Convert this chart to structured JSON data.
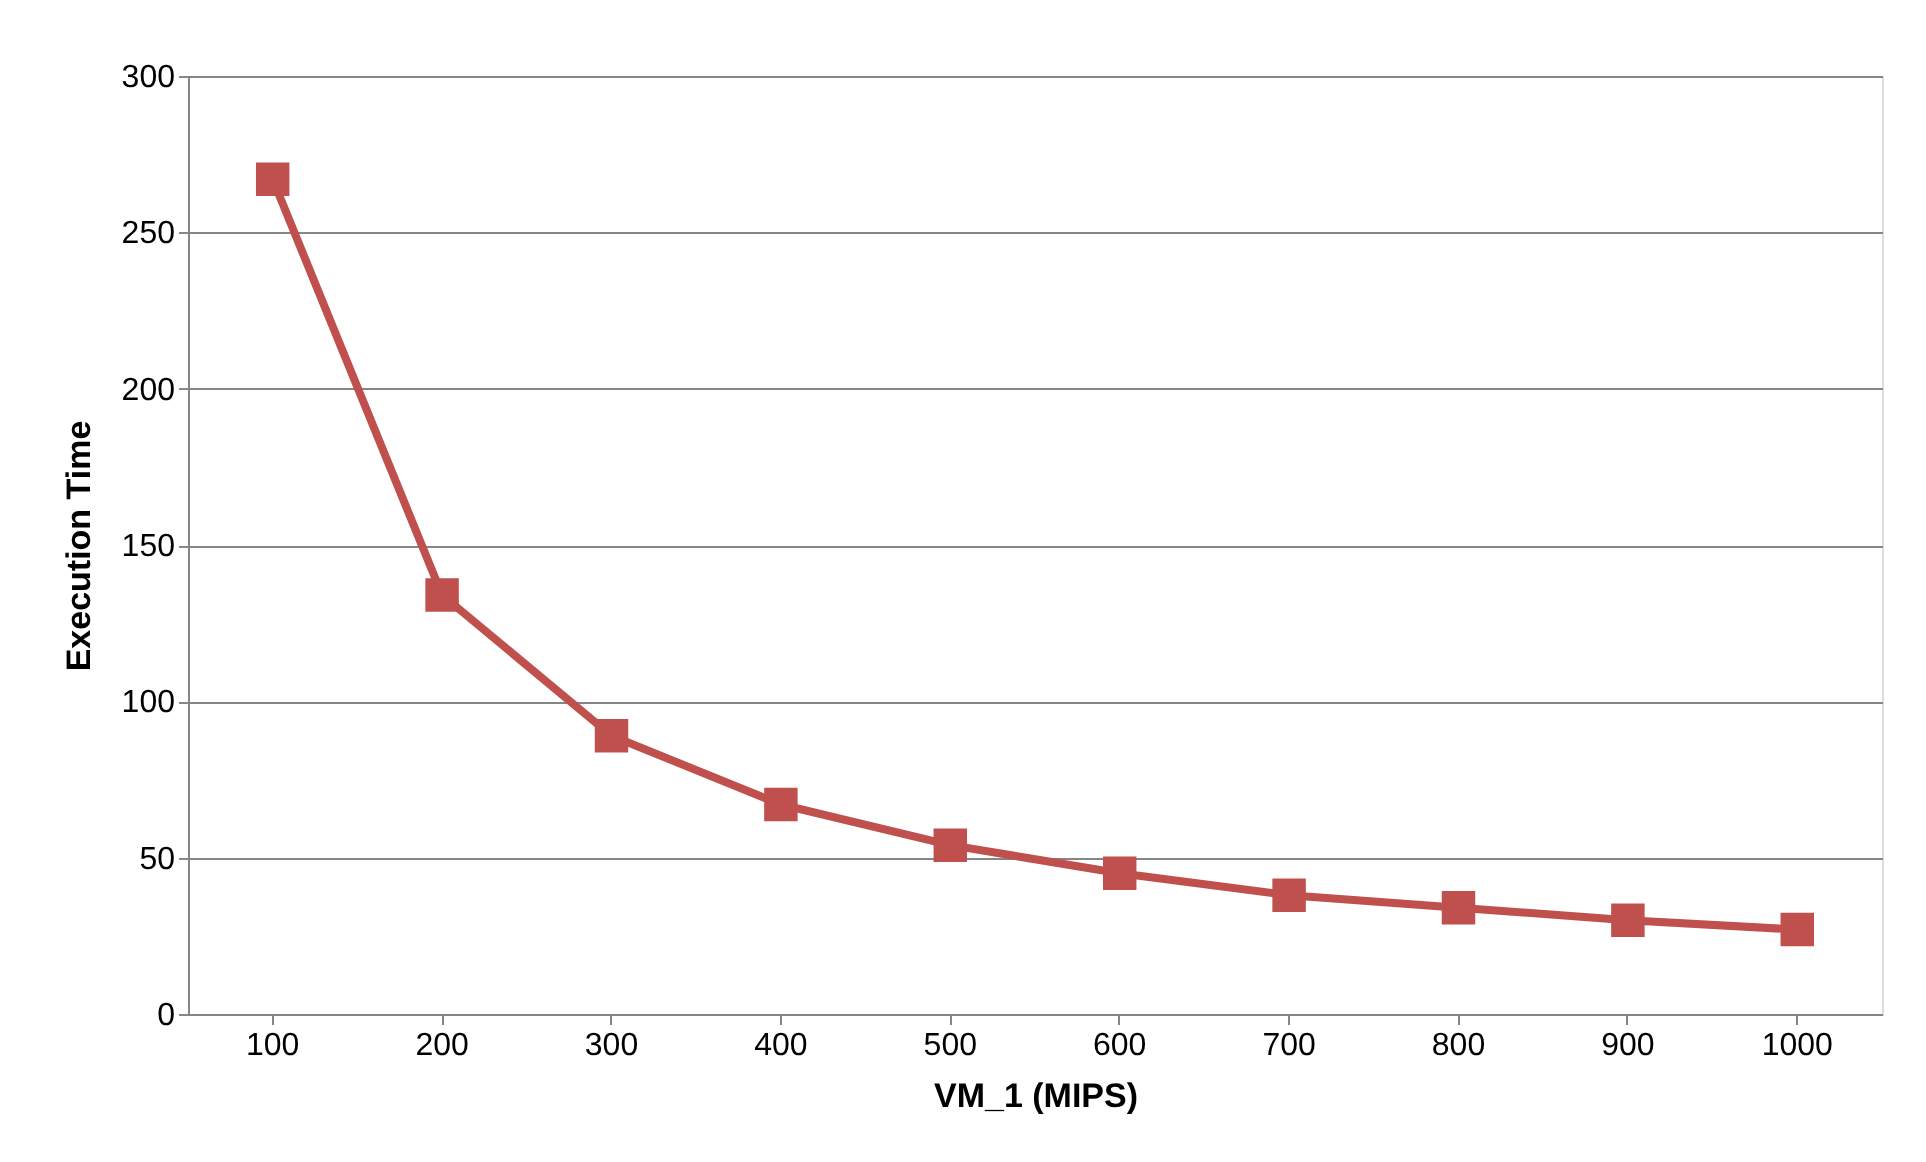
{
  "chart_data": {
    "type": "line",
    "xlabel": "VM_1 (MIPS)",
    "ylabel": "Execution Time",
    "categories": [
      "100",
      "200",
      "300",
      "400",
      "500",
      "600",
      "700",
      "800",
      "900",
      "1000"
    ],
    "series": [
      {
        "color": "#c0504d",
        "values": [
          267,
          134,
          89,
          67,
          54,
          45,
          38,
          34,
          30,
          27
        ]
      }
    ],
    "ylim": [
      0,
      300
    ],
    "yticks": [
      0,
      50,
      100,
      150,
      200,
      250,
      300
    ],
    "grid": "y",
    "marker": "square",
    "line_style": "solid"
  }
}
